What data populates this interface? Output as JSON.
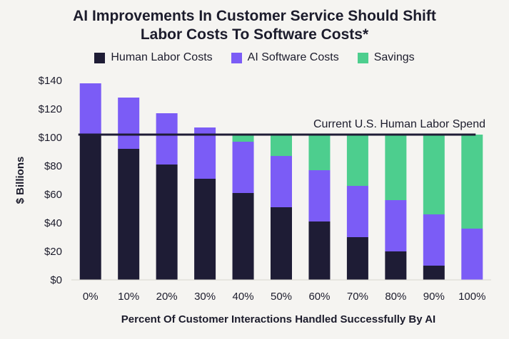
{
  "chart_data": {
    "type": "bar",
    "stacked": true,
    "title_line1": "AI Improvements In Customer Service Should Shift",
    "title_line2": "Labor Costs To Software Costs*",
    "xlabel": "Percent Of Customer Interactions Handled Successfully By AI",
    "ylabel": "$ Billions",
    "ylim": [
      0,
      140
    ],
    "yticks": [
      0,
      20,
      40,
      60,
      80,
      100,
      120,
      140
    ],
    "ytick_labels": [
      "$0",
      "$20",
      "$40",
      "$60",
      "$80",
      "$100",
      "$120",
      "$140"
    ],
    "categories": [
      "0%",
      "10%",
      "20%",
      "30%",
      "40%",
      "50%",
      "60%",
      "70%",
      "80%",
      "90%",
      "100%"
    ],
    "series": [
      {
        "name": "Human Labor Costs",
        "color": "#1e1c35",
        "values": [
          102,
          92,
          81,
          71,
          61,
          51,
          41,
          30,
          20,
          10,
          0
        ]
      },
      {
        "name": "AI Software Costs",
        "color": "#7b5cf6",
        "values": [
          36,
          36,
          36,
          36,
          36,
          36,
          36,
          36,
          36,
          36,
          36
        ]
      },
      {
        "name": "Savings",
        "color": "#4dce8e",
        "values": [
          0,
          0,
          0,
          0,
          5,
          15,
          25,
          36,
          46,
          56,
          66
        ]
      }
    ],
    "reference_line": {
      "value": 102,
      "label": "Current U.S. Human Labor Spend",
      "color": "#1e1c35"
    }
  }
}
